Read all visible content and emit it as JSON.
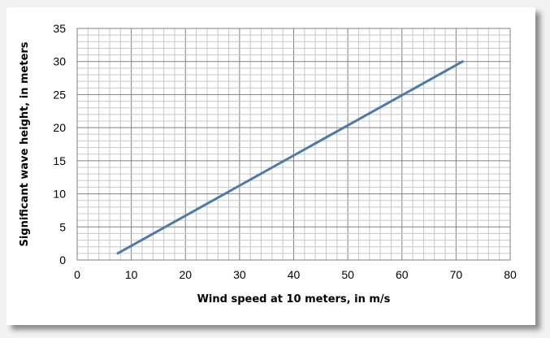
{
  "chart_data": {
    "type": "line",
    "title": "",
    "xlabel": "Wind speed at 10 meters, in m/s",
    "ylabel": "Significant wave height, in meters",
    "xlim": [
      0,
      80
    ],
    "ylim": [
      0,
      35
    ],
    "xticks": [
      0,
      10,
      20,
      30,
      40,
      50,
      60,
      70,
      80
    ],
    "yticks": [
      0,
      5,
      10,
      15,
      20,
      25,
      30,
      35
    ],
    "x_minor_step": 2,
    "y_minor_step": 1,
    "grid": true,
    "legend": "none",
    "series": [
      {
        "x": [
          7.5,
          71.2
        ],
        "y": [
          1.0,
          30.0
        ]
      }
    ],
    "colors": {
      "line": "#4f7aa8",
      "major_grid": "#808080",
      "minor_grid": "#c8c8c8"
    }
  }
}
